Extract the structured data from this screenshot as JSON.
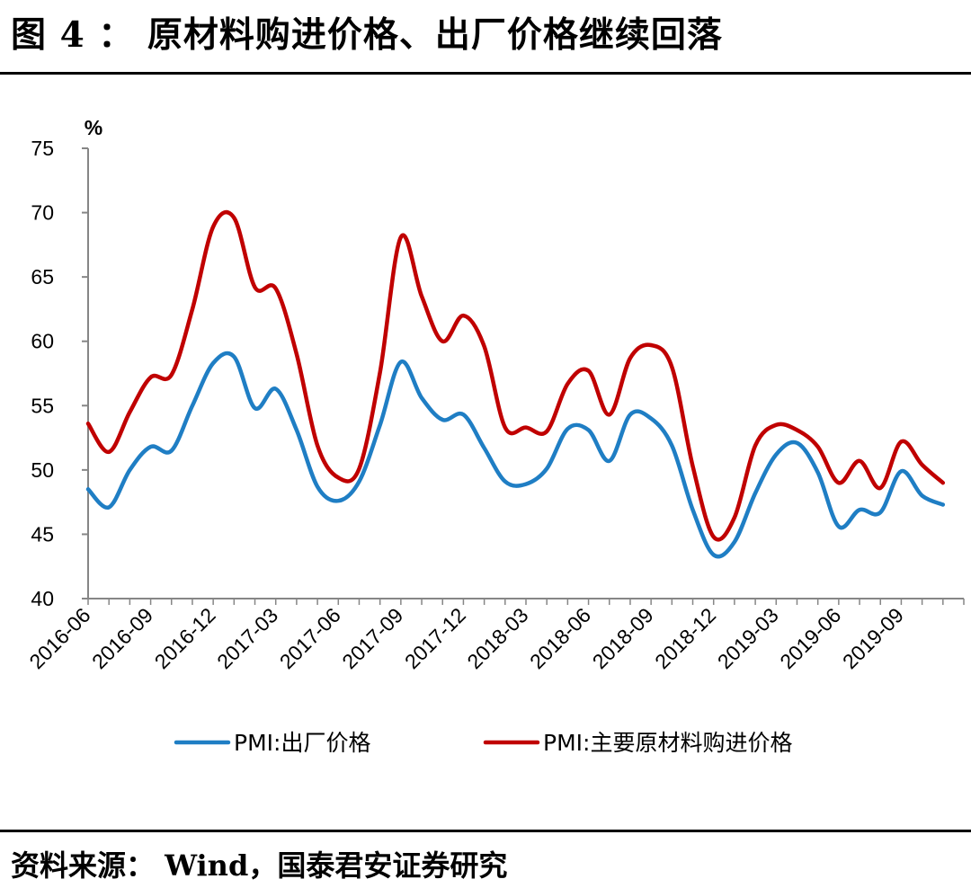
{
  "header": {
    "title": "图 4 ： 原材料购进价格、出厂价格继续回落"
  },
  "footer": {
    "source": "资料来源： Wind，国泰君安证券研究"
  },
  "chart_data": {
    "type": "line",
    "unit_label": "%",
    "ylim": [
      40,
      75
    ],
    "y_ticks": [
      "40",
      "45",
      "50",
      "55",
      "60",
      "65",
      "70",
      "75"
    ],
    "x_tick_labels": [
      "2016-06",
      "2016-09",
      "2016-12",
      "2017-03",
      "2017-06",
      "2017-09",
      "2017-12",
      "2018-03",
      "2018-06",
      "2018-09",
      "2018-12",
      "2019-03",
      "2019-06",
      "2019-09"
    ],
    "x": [
      "2016-06",
      "2016-07",
      "2016-08",
      "2016-09",
      "2016-10",
      "2016-11",
      "2016-12",
      "2017-01",
      "2017-02",
      "2017-03",
      "2017-04",
      "2017-05",
      "2017-06",
      "2017-07",
      "2017-08",
      "2017-09",
      "2017-10",
      "2017-11",
      "2017-12",
      "2018-01",
      "2018-02",
      "2018-03",
      "2018-04",
      "2018-05",
      "2018-06",
      "2018-07",
      "2018-08",
      "2018-09",
      "2018-10",
      "2018-11",
      "2018-12",
      "2019-01",
      "2019-02",
      "2019-03",
      "2019-04",
      "2019-05",
      "2019-06",
      "2019-07",
      "2019-08",
      "2019-09",
      "2019-10",
      "2019-11"
    ],
    "series": [
      {
        "name": "PMI:出厂价格",
        "color": "#1f7ec4",
        "values": [
          48.5,
          47.1,
          50.0,
          51.8,
          51.5,
          55.0,
          58.3,
          58.8,
          54.8,
          56.3,
          53.1,
          48.7,
          47.6,
          49.1,
          53.5,
          58.4,
          55.6,
          53.9,
          54.3,
          51.7,
          49.1,
          48.9,
          50.1,
          53.2,
          53.1,
          50.7,
          54.3,
          54.0,
          51.9,
          46.9,
          43.4,
          44.4,
          48.2,
          51.2,
          52.1,
          49.8,
          45.6,
          46.9,
          46.7,
          49.9,
          48.0,
          47.3
        ]
      },
      {
        "name": "PMI:主要原材料购进价格",
        "color": "#c00000",
        "values": [
          53.6,
          51.4,
          54.5,
          57.2,
          57.4,
          62.5,
          68.9,
          69.6,
          64.2,
          64.1,
          59.0,
          51.9,
          49.4,
          50.1,
          57.6,
          68.1,
          63.5,
          60.0,
          62.0,
          59.6,
          53.3,
          53.3,
          53.0,
          56.7,
          57.7,
          54.3,
          58.7,
          59.7,
          58.0,
          50.3,
          44.8,
          46.3,
          51.9,
          53.5,
          53.1,
          51.8,
          49.0,
          50.7,
          48.6,
          52.2,
          50.4,
          49.0
        ]
      }
    ]
  }
}
